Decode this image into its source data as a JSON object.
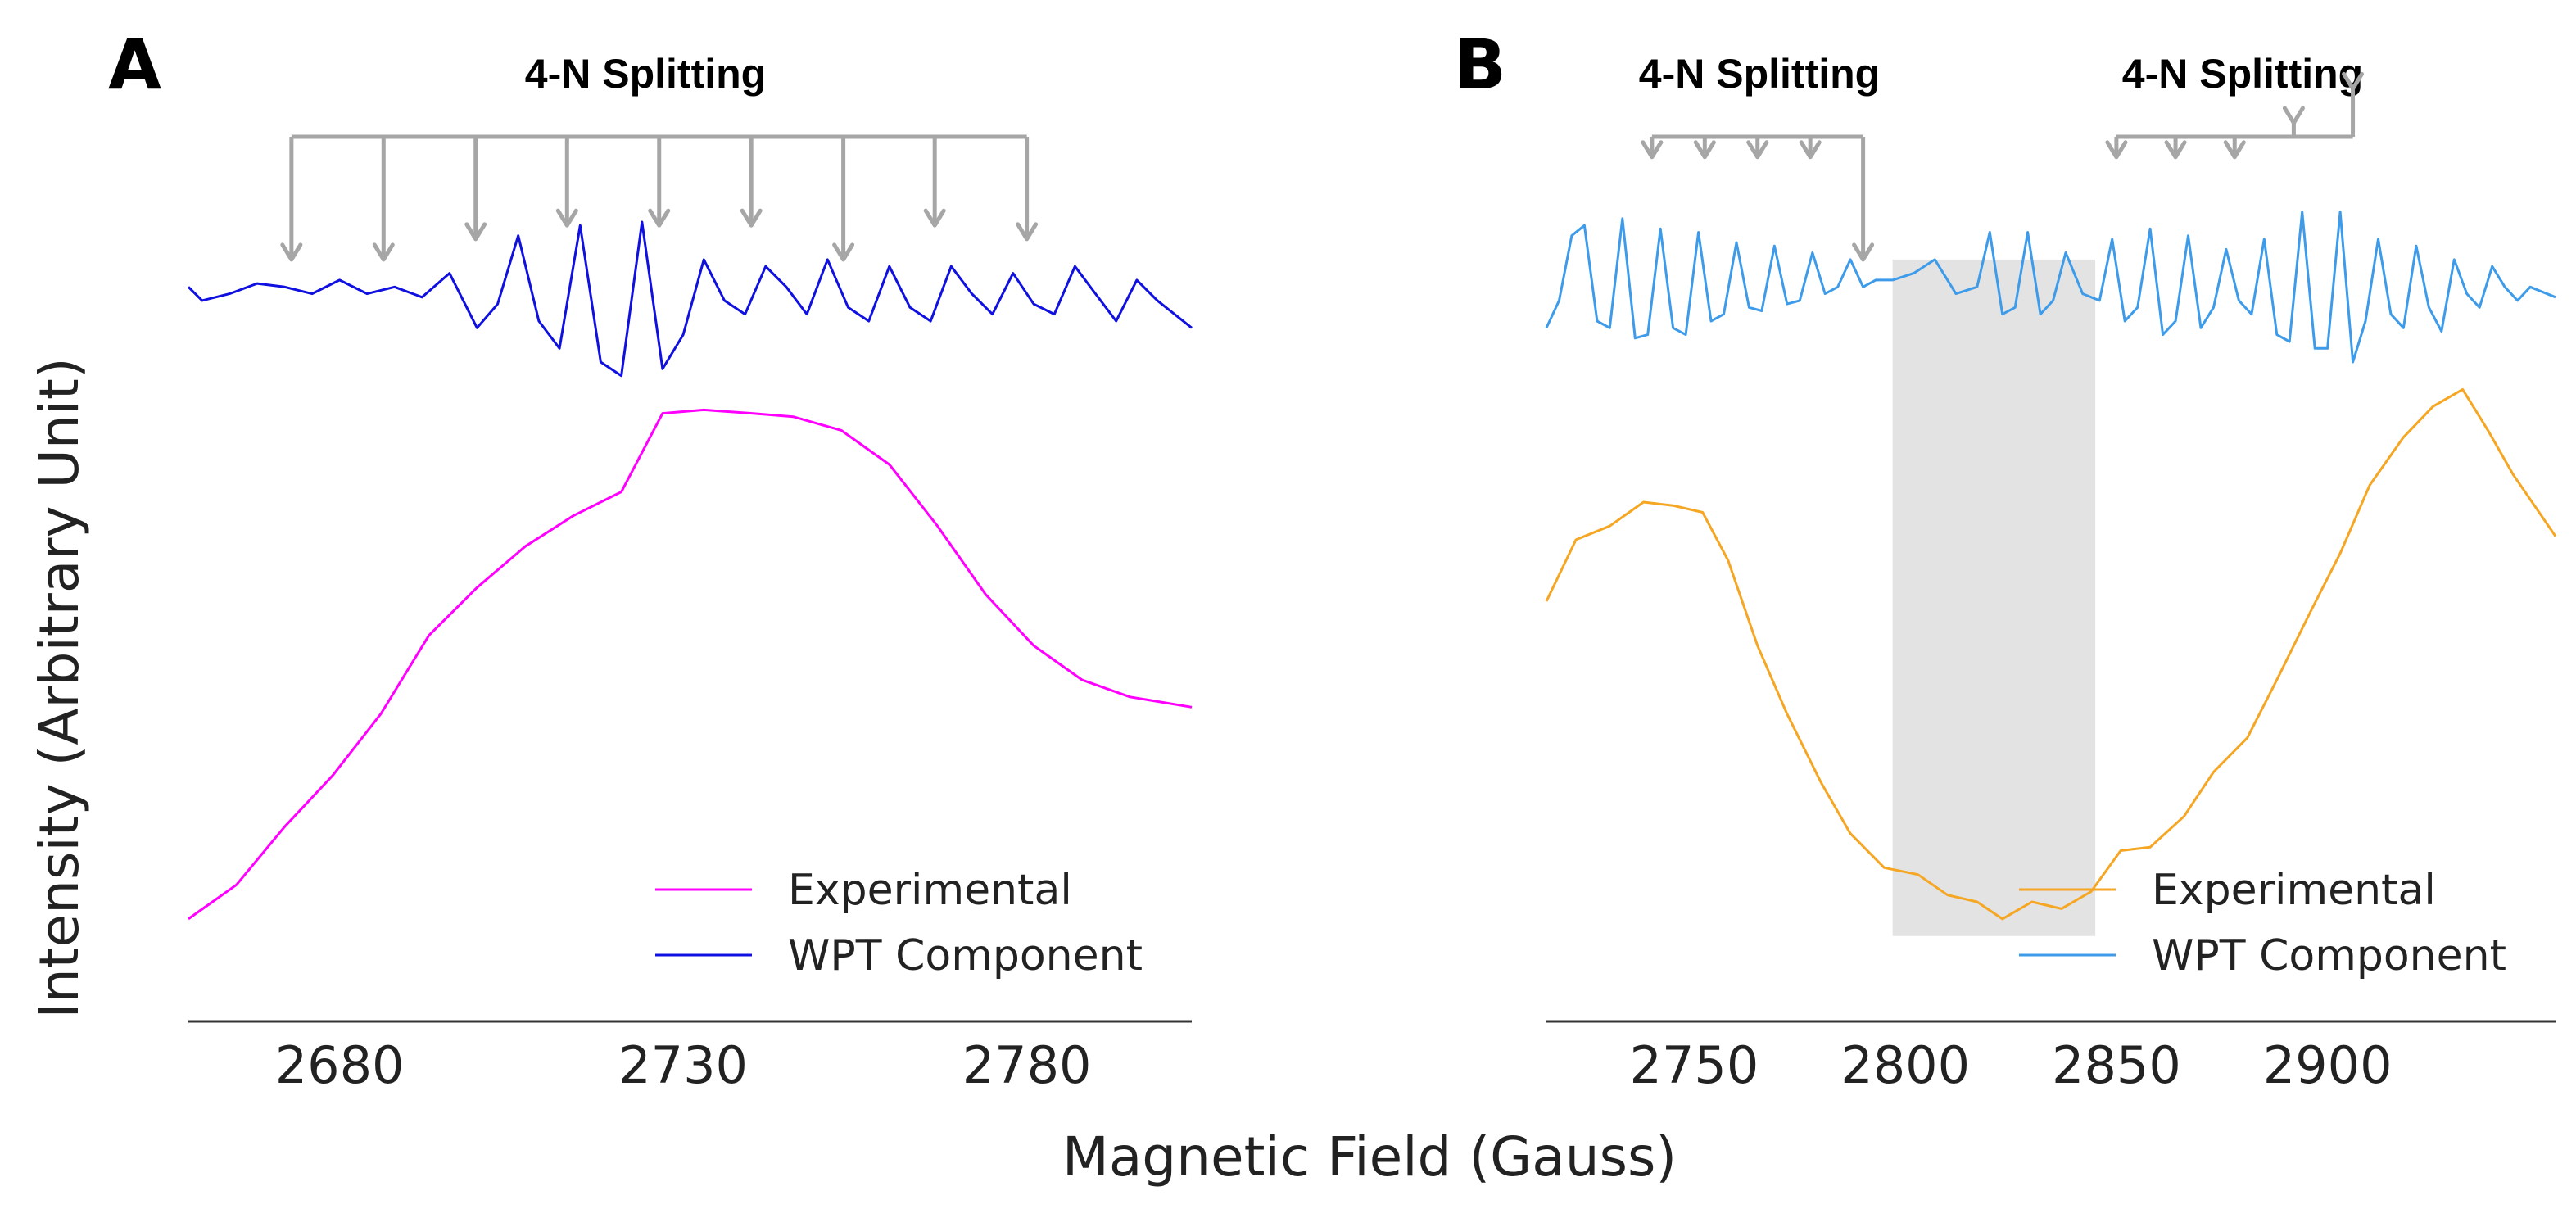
{
  "chart_data": [
    {
      "panel": "A",
      "type": "line",
      "title": "",
      "xlabel": "Magnetic Field (Gauss)",
      "ylabel": "Intensity (Arbitrary Unit)",
      "xlim": [
        2658,
        2804
      ],
      "ylim": [
        -1.15,
        1.6
      ],
      "xticks": [
        2680,
        2730,
        2780
      ],
      "grid": false,
      "legend_position": "bottom-right",
      "annotation": {
        "label": "4-N Splitting",
        "bracket_x": [
          2673,
          2780
        ],
        "arrow_x": [
          2673,
          2686.4,
          2699.8,
          2713.1,
          2726.5,
          2739.9,
          2753.3,
          2766.6,
          2780
        ],
        "arrow_tip_y": [
          1.08,
          1.08,
          1.14,
          1.18,
          1.18,
          1.18,
          1.08,
          1.18,
          1.14
        ]
      },
      "series": [
        {
          "name": "Experimental",
          "color": "#ff00ff",
          "x": [
            2658,
            2665,
            2672,
            2679,
            2686,
            2693,
            2700,
            2707,
            2714,
            2721,
            2727,
            2733,
            2740,
            2746,
            2753,
            2760,
            2767,
            2774,
            2781,
            2788,
            2795,
            2804
          ],
          "y": [
            -0.85,
            -0.75,
            -0.58,
            -0.43,
            -0.25,
            -0.02,
            0.12,
            0.24,
            0.33,
            0.4,
            0.63,
            0.64,
            0.63,
            0.62,
            0.58,
            0.48,
            0.3,
            0.1,
            -0.05,
            -0.15,
            -0.2,
            -0.23
          ]
        },
        {
          "name": "WPT Component",
          "color": "#1010e0",
          "x": [
            2658,
            2660,
            2664,
            2668,
            2672,
            2676,
            2680,
            2684,
            2688,
            2692,
            2696,
            2700,
            2703,
            2706,
            2709,
            2712,
            2715,
            2718,
            2721,
            2724,
            2727,
            2730,
            2733,
            2736,
            2739,
            2742,
            2745,
            2748,
            2751,
            2754,
            2757,
            2760,
            2763,
            2766,
            2769,
            2772,
            2775,
            2778,
            2781,
            2784,
            2787,
            2790,
            2793,
            2796,
            2799,
            2804
          ],
          "y": [
            1.0,
            0.96,
            0.98,
            1.01,
            1.0,
            0.98,
            1.02,
            0.98,
            1.0,
            0.97,
            1.04,
            0.88,
            0.95,
            1.15,
            0.9,
            0.82,
            1.18,
            0.78,
            0.74,
            1.19,
            0.76,
            0.86,
            1.08,
            0.96,
            0.92,
            1.06,
            1.0,
            0.92,
            1.08,
            0.94,
            0.9,
            1.06,
            0.94,
            0.9,
            1.06,
            0.98,
            0.92,
            1.04,
            0.95,
            0.92,
            1.06,
            0.98,
            0.9,
            1.02,
            0.96,
            0.88
          ]
        }
      ]
    },
    {
      "panel": "B",
      "type": "line",
      "title": "",
      "xlabel": "Magnetic Field (Gauss)",
      "ylabel": "Intensity (Arbitrary Unit)",
      "xlim": [
        2715,
        2954
      ],
      "ylim": [
        -1.15,
        1.6
      ],
      "xticks": [
        2750,
        2800,
        2850,
        2900
      ],
      "grid": false,
      "legend_position": "bottom-right",
      "shaded_region": {
        "x": [
          2797,
          2845
        ],
        "y": [
          -0.9,
          1.08
        ],
        "color": "#e3e3e3"
      },
      "annotations": [
        {
          "label": "4-N Splitting",
          "bracket_x": [
            2740,
            2790
          ],
          "arrow_x": [
            2740,
            2752.5,
            2765,
            2777.5,
            2790
          ],
          "arrow_tip_y": [
            1.38,
            1.38,
            1.38,
            1.38,
            1.08
          ]
        },
        {
          "label": "4-N Splitting",
          "bracket_x": [
            2850,
            2906
          ],
          "arrow_x": [
            2850,
            2864,
            2878,
            2892,
            2906
          ],
          "arrow_tip_y": [
            1.38,
            1.38,
            1.38,
            1.48,
            1.58
          ]
        }
      ],
      "series": [
        {
          "name": "Experimental",
          "color": "#f5a623",
          "x": [
            2715,
            2722,
            2730,
            2738,
            2745,
            2752,
            2758,
            2765,
            2772,
            2780,
            2787,
            2795,
            2803,
            2810,
            2817,
            2823,
            2830,
            2837,
            2844,
            2851,
            2858,
            2866,
            2873,
            2881,
            2888,
            2896,
            2903,
            2910,
            2918,
            2925,
            2932,
            2938,
            2944,
            2954
          ],
          "y": [
            0.08,
            0.26,
            0.3,
            0.37,
            0.36,
            0.34,
            0.2,
            -0.05,
            -0.25,
            -0.45,
            -0.6,
            -0.7,
            -0.72,
            -0.78,
            -0.8,
            -0.85,
            -0.8,
            -0.82,
            -0.77,
            -0.65,
            -0.64,
            -0.55,
            -0.42,
            -0.32,
            -0.15,
            0.05,
            0.22,
            0.42,
            0.56,
            0.65,
            0.7,
            0.58,
            0.45,
            0.27
          ]
        },
        {
          "name": "WPT Component",
          "color": "#3d9be9",
          "x": [
            2715,
            2718,
            2721,
            2724,
            2727,
            2730,
            2733,
            2736,
            2739,
            2742,
            2745,
            2748,
            2751,
            2754,
            2757,
            2760,
            2763,
            2766,
            2769,
            2772,
            2775,
            2778,
            2781,
            2784,
            2787,
            2790,
            2793,
            2797,
            2802,
            2807,
            2812,
            2817,
            2820,
            2823,
            2826,
            2829,
            2832,
            2835,
            2838,
            2842,
            2846,
            2849,
            2852,
            2855,
            2858,
            2861,
            2864,
            2867,
            2870,
            2873,
            2876,
            2879,
            2882,
            2885,
            2888,
            2891,
            2894,
            2897,
            2900,
            2903,
            2906,
            2909,
            2912,
            2915,
            2918,
            2921,
            2924,
            2927,
            2930,
            2933,
            2936,
            2939,
            2942,
            2945,
            2948,
            2954
          ],
          "y": [
            0.88,
            0.96,
            1.15,
            1.18,
            0.9,
            0.88,
            1.2,
            0.85,
            0.86,
            1.17,
            0.88,
            0.86,
            1.16,
            0.9,
            0.92,
            1.13,
            0.94,
            0.93,
            1.12,
            0.95,
            0.96,
            1.1,
            0.98,
            1.0,
            1.08,
            1.0,
            1.02,
            1.02,
            1.04,
            1.08,
            0.98,
            1.0,
            1.16,
            0.92,
            0.94,
            1.16,
            0.92,
            0.96,
            1.1,
            0.98,
            0.96,
            1.14,
            0.9,
            0.94,
            1.17,
            0.86,
            0.9,
            1.15,
            0.88,
            0.94,
            1.11,
            0.96,
            0.92,
            1.14,
            0.86,
            0.84,
            1.22,
            0.82,
            0.82,
            1.22,
            0.78,
            0.9,
            1.14,
            0.92,
            0.88,
            1.12,
            0.94,
            0.87,
            1.08,
            0.98,
            0.94,
            1.06,
            1.0,
            0.96,
            1.0,
            0.97
          ]
        }
      ]
    }
  ]
}
